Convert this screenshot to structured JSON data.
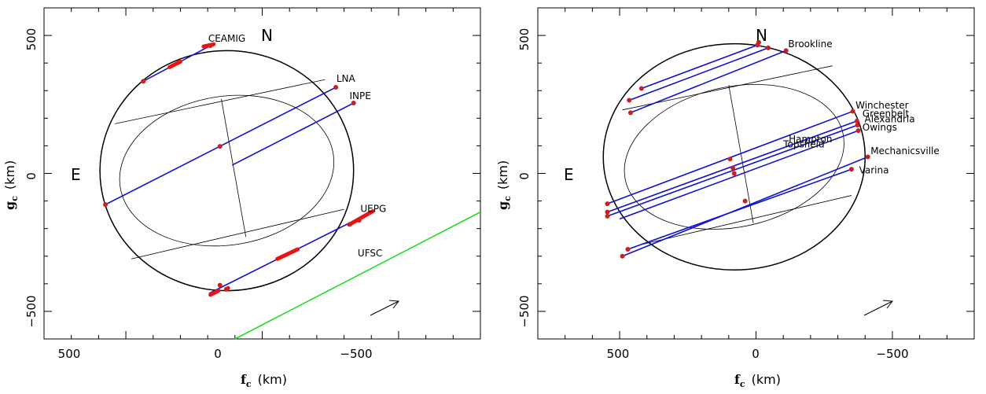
{
  "panels": [
    {
      "id": "left",
      "compass": {
        "north": "N",
        "east": "E"
      },
      "stations": [
        {
          "name": "CEAMIG",
          "chord": [
            [
              436,
              334
            ],
            [
              190,
              463
            ]
          ],
          "at": [
            198,
            478
          ],
          "color": "#1010d0"
        },
        {
          "name": "LNA",
          "chord": [
            [
              575,
              -113
            ],
            [
              -270,
              312
            ]
          ],
          "at": [
            -272,
            332
          ],
          "color": "#1010d0"
        },
        {
          "name": "INPE",
          "chord": [
            [
              110,
              30
            ],
            [
              -335,
              255
            ]
          ],
          "at": [
            -320,
            270
          ],
          "color": "#1010d0"
        },
        {
          "name": "UEPG",
          "chord": [
            [
              195,
              -435
            ],
            [
              -400,
              -140
            ]
          ],
          "at": [
            -360,
            -140
          ],
          "color": "#1010d0"
        },
        {
          "name": "UFSC",
          "chord": [
            [
              100,
              -600
            ],
            [
              -800,
              -140
            ]
          ],
          "at": [
            -350,
            -300
          ],
          "color": "#22dd22"
        }
      ],
      "limb_points": [
        [
          436,
          334
        ],
        [
          190,
          463
        ],
        [
          -270,
          312
        ],
        [
          -335,
          255
        ],
        [
          575,
          -113
        ],
        [
          155,
          98
        ],
        [
          -320,
          -185
        ],
        [
          -355,
          -170
        ],
        [
          155,
          -405
        ],
        [
          132,
          -420
        ]
      ],
      "uncertainty_segments": [
        [
          [
            215,
            460
          ],
          [
            178,
            468
          ]
        ],
        [
          [
            340,
            385
          ],
          [
            300,
            405
          ]
        ],
        [
          [
            130,
            -420
          ],
          [
            125,
            -415
          ]
        ],
        [
          [
            -55,
            -310
          ],
          [
            -130,
            -275
          ]
        ],
        [
          [
            -320,
            -185
          ],
          [
            -405,
            -137
          ]
        ],
        [
          [
            190,
            -440
          ],
          [
            160,
            -425
          ]
        ]
      ]
    },
    {
      "id": "right",
      "compass": {
        "north": "N",
        "east": "E"
      },
      "stations": [
        {
          "name": "Brookline",
          "chord": [
            [
              460,
              220
            ],
            [
              -110,
              445
            ]
          ],
          "at": [
            -118,
            458
          ],
          "color": "#1010d0"
        },
        {
          "name": "Hampton",
          "chord": [
            [
              420,
              308
            ],
            [
              -5,
              465
            ]
          ],
          "at": [
            -120,
            113
          ],
          "color": "#1010d0"
        },
        {
          "name": "Topsfield",
          "chord": [
            [
              465,
              265
            ],
            [
              -45,
              455
            ]
          ],
          "at": [
            -100,
            94
          ],
          "color": "#1010d0"
        },
        {
          "name": "Winchester",
          "chord": [
            [
              545,
              -110
            ],
            [
              -355,
              225
            ]
          ],
          "at": [
            -365,
            235
          ],
          "color": "#1010d0"
        },
        {
          "name": "Greenbelt",
          "chord": [
            [
              545,
              -140
            ],
            [
              -370,
              190
            ]
          ],
          "at": [
            -390,
            205
          ],
          "color": "#1010d0"
        },
        {
          "name": "Alexandria",
          "chord": [
            [
              545,
              -155
            ],
            [
              -372,
              175
            ]
          ],
          "at": [
            -398,
            185
          ],
          "color": "#1010d0"
        },
        {
          "name": "Owings",
          "chord": [
            [
              500,
              -165
            ],
            [
              -375,
              155
            ]
          ],
          "at": [
            -390,
            155
          ],
          "color": "#1010d0"
        },
        {
          "name": "Mechanicsville",
          "chord": [
            [
              490,
              -300
            ],
            [
              -410,
              60
            ]
          ],
          "at": [
            -420,
            70
          ],
          "color": "#1010d0"
        },
        {
          "name": "Varina",
          "chord": [
            [
              470,
              -275
            ],
            [
              -350,
              15
            ]
          ],
          "at": [
            -378,
            0
          ],
          "color": "#1010d0"
        }
      ],
      "limb_points": [
        [
          460,
          220
        ],
        [
          420,
          308
        ],
        [
          465,
          265
        ],
        [
          -5,
          465
        ],
        [
          -45,
          455
        ],
        [
          -110,
          445
        ],
        [
          545,
          -110
        ],
        [
          545,
          -140
        ],
        [
          545,
          -155
        ],
        [
          -355,
          225
        ],
        [
          -370,
          190
        ],
        [
          -372,
          175
        ],
        [
          -375,
          155
        ],
        [
          -410,
          60
        ],
        [
          -350,
          15
        ],
        [
          470,
          -275
        ],
        [
          490,
          -300
        ],
        [
          95,
          52
        ],
        [
          85,
          20
        ],
        [
          80,
          0
        ],
        [
          40,
          -100
        ],
        [
          -10,
          475
        ]
      ]
    }
  ],
  "chart_data": [
    {
      "type": "scatter",
      "title": "",
      "xlabel": {
        "main": "f",
        "sub": "c",
        "unit": "(km)"
      },
      "ylabel": {
        "main": "g",
        "sub": "c",
        "unit": "(km)"
      },
      "xlim": [
        800,
        -800
      ],
      "ylim": [
        -600,
        600
      ],
      "x_ticks": [
        "500",
        "0",
        "−500"
      ],
      "y_ticks": [
        "500",
        "0",
        "−500"
      ],
      "annotations": [
        "N",
        "E",
        "CEAMIG",
        "LNA",
        "INPE",
        "UEPG",
        "UFSC"
      ],
      "ellipse": {
        "center": [
          130,
          10
        ],
        "semi_major": 465,
        "semi_minor": 435
      },
      "grid": false
    },
    {
      "type": "scatter",
      "title": "",
      "xlabel": {
        "main": "f",
        "sub": "c",
        "unit": "(km)"
      },
      "ylabel": {
        "main": "g",
        "sub": "c",
        "unit": "(km)"
      },
      "xlim": [
        800,
        -800
      ],
      "ylim": [
        -600,
        600
      ],
      "x_ticks": [
        "500",
        "0",
        "−500"
      ],
      "y_ticks": [
        "500",
        "0",
        "−500"
      ],
      "annotations": [
        "N",
        "E",
        "Brookline",
        "Hampton",
        "Topsfield",
        "Winchester",
        "Greenbelt",
        "Alexandria",
        "Owings",
        "Mechanicsville",
        "Varina"
      ],
      "ellipse": {
        "center": [
          80,
          60
        ],
        "semi_major": 480,
        "semi_minor": 410
      },
      "grid": false
    }
  ]
}
